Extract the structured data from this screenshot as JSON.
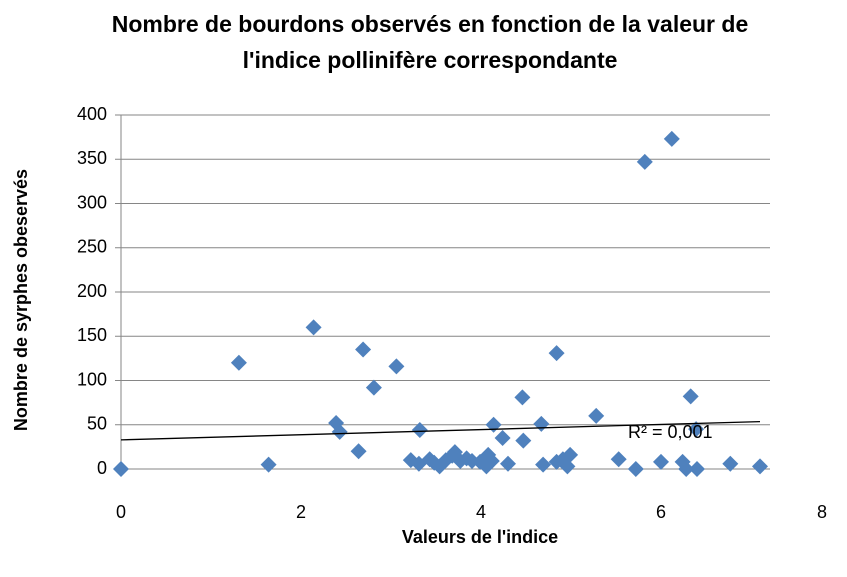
{
  "chart_data": {
    "type": "scatter",
    "title": "Nombre de bourdons observés en fonction de la valeur de l'indice pollinifère correspondante",
    "x_label": "Valeurs de l'indice",
    "y_label": "Nombre de syrphes obeservés",
    "annotation": "R² = 0,001",
    "color": "#4f81bd",
    "trendline": true,
    "grid": true,
    "xlim": [
      0,
      8
    ],
    "xticks": [
      0,
      2,
      4,
      6,
      8
    ],
    "ylim": [
      0,
      400
    ],
    "yticks": [
      0,
      50,
      100,
      150,
      200,
      250,
      300,
      350,
      400
    ],
    "x": [
      0,
      1.31,
      1.64,
      2.14,
      2.39,
      2.43,
      2.69,
      2.64,
      2.81,
      3.06,
      3.22,
      3.32,
      3.31,
      3.43,
      3.48,
      3.54,
      3.61,
      3.68,
      3.71,
      3.77,
      3.84,
      3.9,
      3.99,
      4.06,
      4.08,
      4.12,
      4.14,
      4.24,
      4.3,
      4.46,
      4.47,
      4.67,
      4.69,
      4.84,
      4.84,
      4.91,
      4.96,
      4.99,
      5.28,
      5.53,
      5.72,
      5.82,
      6.0,
      6.12,
      6.24,
      6.28,
      6.33,
      6.39,
      6.4,
      6.77,
      7.1
    ],
    "values": [
      0,
      120,
      5,
      160,
      52,
      42,
      135,
      20,
      92,
      116,
      10,
      44,
      6,
      11,
      7,
      3,
      10,
      15,
      19,
      9,
      12,
      9,
      8,
      3,
      16,
      9,
      50,
      35,
      6,
      81,
      32,
      51,
      5,
      131,
      8,
      11,
      3,
      16,
      60,
      11,
      0,
      347,
      8,
      373,
      8,
      0,
      82,
      45,
      0,
      6,
      3
    ]
  }
}
